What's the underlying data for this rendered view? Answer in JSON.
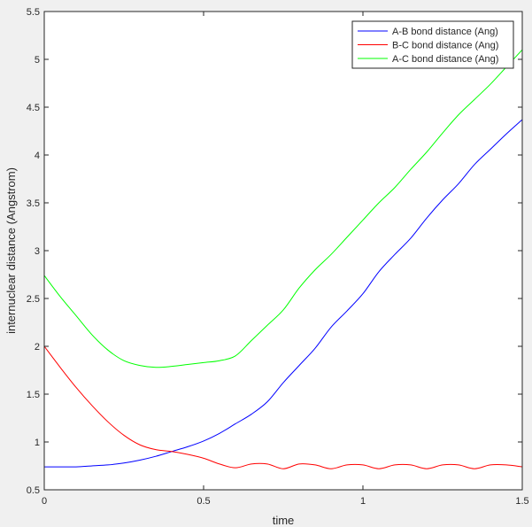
{
  "chart_data": {
    "type": "line",
    "title": "",
    "xlabel": "time",
    "ylabel": "internuclear distance (Angstrom)",
    "xlim": [
      0,
      1.5
    ],
    "ylim": [
      0.5,
      5.5
    ],
    "xticks": [
      0,
      0.5,
      1,
      1.5
    ],
    "xtick_labels": [
      "0",
      "0.5",
      "1",
      "1.5"
    ],
    "yticks": [
      0.5,
      1,
      1.5,
      2,
      2.5,
      3,
      3.5,
      4,
      4.5,
      5,
      5.5
    ],
    "ytick_labels": [
      "0.5",
      "1",
      "1.5",
      "2",
      "2.5",
      "3",
      "3.5",
      "4",
      "4.5",
      "5",
      "5.5"
    ],
    "grid": false,
    "legend_position": "top-right",
    "x": [
      0,
      0.05,
      0.1,
      0.15,
      0.2,
      0.25,
      0.3,
      0.35,
      0.4,
      0.45,
      0.5,
      0.55,
      0.6,
      0.65,
      0.7,
      0.75,
      0.8,
      0.85,
      0.9,
      0.95,
      1.0,
      1.05,
      1.1,
      1.15,
      1.2,
      1.25,
      1.3,
      1.35,
      1.4,
      1.45,
      1.5
    ],
    "series": [
      {
        "name": "A-B bond distance (Ang)",
        "color": "#0000ff",
        "values": [
          0.74,
          0.74,
          0.74,
          0.75,
          0.76,
          0.78,
          0.81,
          0.85,
          0.9,
          0.95,
          1.01,
          1.09,
          1.19,
          1.29,
          1.42,
          1.62,
          1.8,
          1.98,
          2.2,
          2.37,
          2.55,
          2.78,
          2.96,
          3.13,
          3.34,
          3.53,
          3.7,
          3.9,
          4.06,
          4.22,
          4.37
        ]
      },
      {
        "name": "B-C bond distance (Ang)",
        "color": "#ff0000",
        "values": [
          2.0,
          1.78,
          1.57,
          1.38,
          1.21,
          1.07,
          0.97,
          0.92,
          0.9,
          0.87,
          0.83,
          0.77,
          0.73,
          0.77,
          0.77,
          0.72,
          0.77,
          0.76,
          0.72,
          0.76,
          0.76,
          0.72,
          0.76,
          0.76,
          0.72,
          0.76,
          0.76,
          0.72,
          0.76,
          0.76,
          0.74
        ]
      },
      {
        "name": "A-C bond distance (Ang)",
        "color": "#00ff00",
        "values": [
          2.74,
          2.52,
          2.32,
          2.12,
          1.96,
          1.85,
          1.8,
          1.78,
          1.79,
          1.81,
          1.83,
          1.85,
          1.9,
          2.06,
          2.22,
          2.38,
          2.61,
          2.8,
          2.96,
          3.14,
          3.32,
          3.5,
          3.66,
          3.85,
          4.03,
          4.23,
          4.42,
          4.58,
          4.74,
          4.92,
          5.1
        ]
      }
    ]
  }
}
